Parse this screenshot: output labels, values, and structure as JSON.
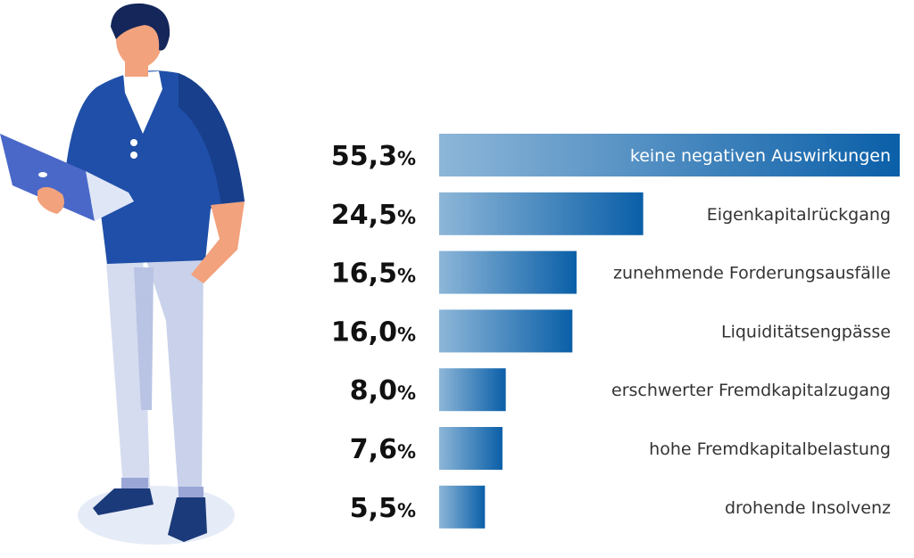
{
  "chart_data": {
    "type": "bar",
    "orientation": "horizontal",
    "title": "",
    "xlabel": "",
    "ylabel": "",
    "xlim": [
      0,
      55.3
    ],
    "grid": false,
    "legend": "none",
    "unit": "%",
    "categories": [
      "keine negativen Auswirkungen",
      "Eigenkapitalrückgang",
      "zunehmende Forderungsausfälle",
      "Liquiditätsengpässe",
      "erschwerter Fremdkapitalzugang",
      "hohe Fremdkapitalbelastung",
      "drohende Insolvenz"
    ],
    "values": [
      55.3,
      24.5,
      16.5,
      16.0,
      8.0,
      7.6,
      5.5
    ],
    "value_labels": [
      "55,3",
      "24,5",
      "16,5",
      "16,0",
      "8,0",
      "7,6",
      "5,5"
    ],
    "colors": {
      "bar_light": "#8db6d8",
      "bar_dark": "#0a5fa8",
      "text": "#333333",
      "value_text": "#111111"
    }
  },
  "illustration": {
    "icon": "person-with-laptop-icon",
    "colors": {
      "sweater": "#1f4fa8",
      "hair": "#14265a",
      "skin": "#f2a27d",
      "pants": "#d5dcef",
      "shoes": "#1b3a7a",
      "shadow": "#e6ecf7",
      "laptop": "#4a68c8"
    }
  }
}
